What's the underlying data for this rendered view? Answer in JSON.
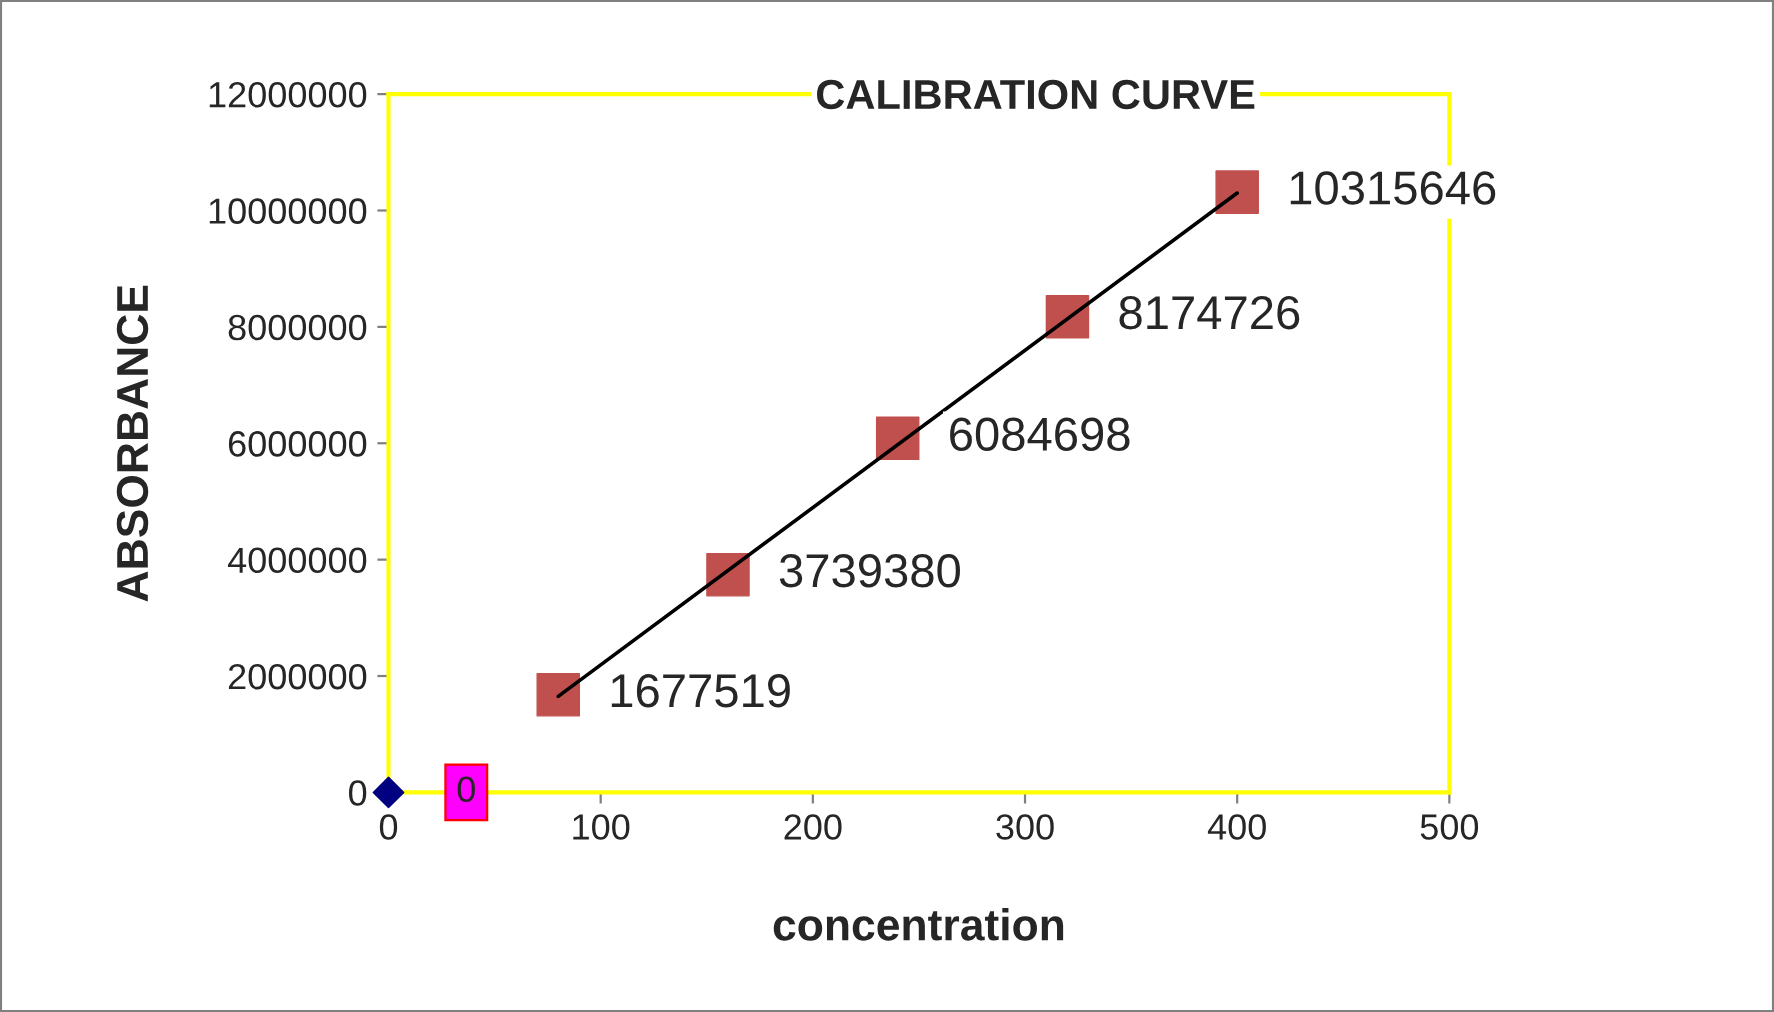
{
  "chart_data": {
    "type": "scatter",
    "title": "CALIBRATION CURVE",
    "xlabel": "concentration",
    "ylabel": "ABSORBANCE",
    "xlim": [
      0,
      500
    ],
    "xticks": [
      0,
      100,
      200,
      300,
      400,
      500
    ],
    "ylim": [
      0,
      12000000
    ],
    "yticks": [
      0,
      2000000,
      4000000,
      6000000,
      8000000,
      10000000,
      12000000
    ],
    "grid": false,
    "legend": false,
    "series": [
      {
        "color": "#000080",
        "marker": "diamond",
        "x": [
          0
        ],
        "values": [
          0
        ],
        "value_labels": [
          "0"
        ]
      },
      {
        "color": "#c0504d",
        "marker": "square",
        "x": [
          80,
          160,
          240,
          320,
          400
        ],
        "values": [
          1677519,
          3739380,
          6084698,
          8174726,
          10315646
        ],
        "value_labels": [
          "1677519",
          "3739380",
          "6084698",
          "8174726",
          "10315646"
        ]
      },
      {
        "type": "line",
        "color": "#000000",
        "marker": "none",
        "line_style": "solid",
        "x": [
          80,
          400
        ],
        "values": [
          1650000,
          10300000
        ]
      }
    ]
  }
}
